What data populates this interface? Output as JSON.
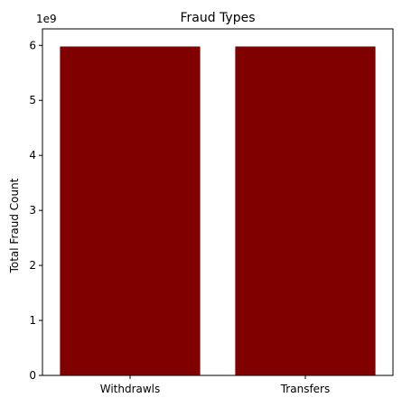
{
  "chart_data": {
    "type": "bar",
    "title": "Fraud Types",
    "xlabel": "",
    "ylabel": "Total Fraud Count",
    "y_offset_label": "1e9",
    "y_scale": 1000000000,
    "categories": [
      "Withdrawls",
      "Transfers"
    ],
    "values": [
      5980000000,
      5980000000
    ],
    "ylim": [
      0,
      6300000000
    ],
    "yticks": [
      0,
      1,
      2,
      3,
      4,
      5,
      6
    ],
    "bar_color": "#800000",
    "grid": false,
    "legend": "none"
  }
}
